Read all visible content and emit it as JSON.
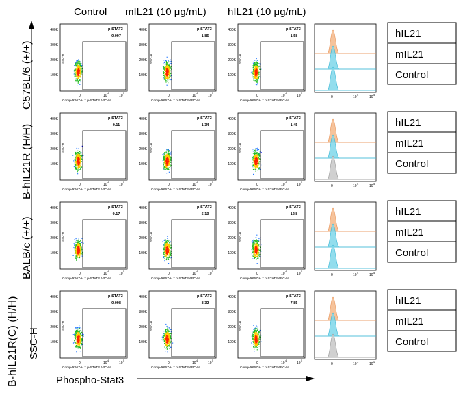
{
  "column_headers": [
    "Control",
    "mIL21 (10 μg/mL)",
    "hIL21 (10 μg/mL)"
  ],
  "row_labels": [
    "C57BL/6 (+/+)",
    "B-hIL21R (H/H)",
    "BALB/c (+/+)",
    "B-hIL21R(C) (H/H)"
  ],
  "axis_labels": {
    "y": "SSC-H",
    "x": "Phospho-Stat3"
  },
  "gate_label": "p-STAT3+",
  "panel_x_axis_title": "Comp-R667-H :: p-STAT3 APC-H",
  "panel_y_axis_title": "SSC-H",
  "y_tick_labels": [
    "400K",
    "300K",
    "200K",
    "100K"
  ],
  "x_tick_labels": [
    "0",
    "10",
    "4",
    "10",
    "5"
  ],
  "gate_values": [
    [
      "0.097",
      "1.85",
      "1.58"
    ],
    [
      "0.11",
      "1.34",
      "1.45"
    ],
    [
      "0.17",
      "5.13",
      "12.8"
    ],
    [
      "0.098",
      "8.32",
      "7.85"
    ]
  ],
  "legend_items": [
    "hIL21",
    "mIL21",
    "Control"
  ],
  "histogram_colors": {
    "hIL21": "#f5b98a",
    "mIL21": "#7fd7ea",
    "Control": "#c8c8c8"
  },
  "histogram_x_tick_labels": [
    "0",
    "10",
    "4",
    "10",
    "5"
  ]
}
